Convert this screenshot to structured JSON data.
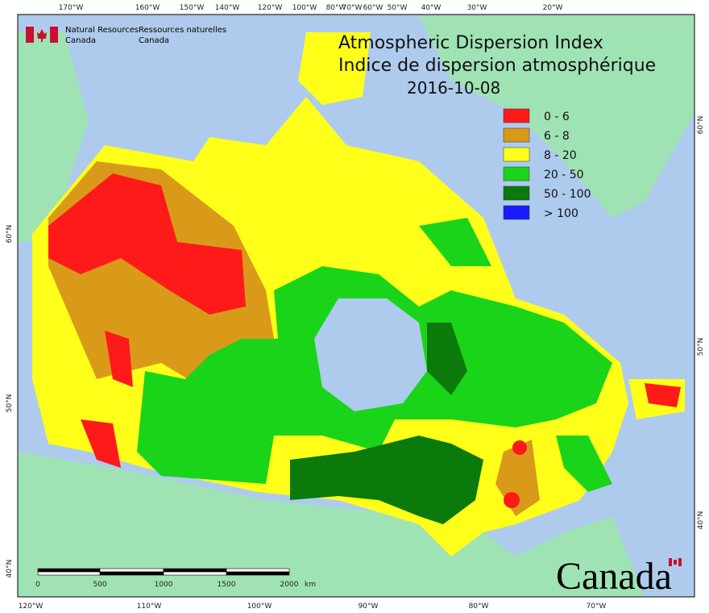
{
  "header": {
    "agency_en": [
      "Natural Resources",
      "Canada"
    ],
    "agency_fr": [
      "Ressources naturelles",
      "Canada"
    ]
  },
  "title": {
    "line1": "Atmospheric Dispersion Index",
    "line2": "Indice de dispersion atmosphérique",
    "date": "2016-10-08"
  },
  "legend": [
    {
      "label": "0 - 6",
      "color": "#ff1a1a"
    },
    {
      "label": "6 - 8",
      "color": "#d99a1a"
    },
    {
      "label": "8 - 20",
      "color": "#ffff1a"
    },
    {
      "label": "20 - 50",
      "color": "#1ad41a"
    },
    {
      "label": "50 - 100",
      "color": "#0a7a0a"
    },
    {
      "label": "> 100",
      "color": "#1a1aff"
    }
  ],
  "top_labels": [
    "170°W",
    "160°W",
    "150°W",
    "140°W",
    "120°W",
    "100°W",
    "80°W",
    "70°W",
    "60°W",
    "50°W",
    "40°W",
    "30°W",
    "20°W"
  ],
  "bottom_labels": [
    "120°W",
    "110°W",
    "100°W",
    "90°W",
    "80°W",
    "70°W"
  ],
  "left_labels": [
    "60°N",
    "50°N",
    "40°N"
  ],
  "right_labels": [
    "60°N",
    "50°N",
    "40°N"
  ],
  "scale_bar": {
    "labels": [
      "0",
      "500",
      "1000",
      "1500",
      "2000"
    ],
    "unit": "km"
  },
  "wordmark": "Canada"
}
